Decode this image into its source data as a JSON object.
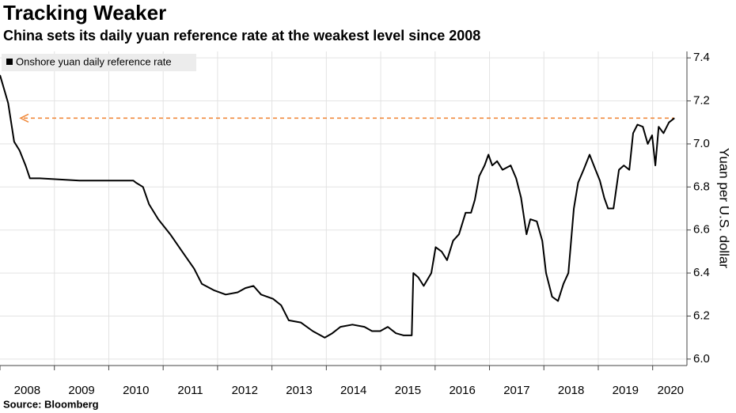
{
  "chart_data": {
    "type": "line",
    "title": "Tracking Weaker",
    "subtitle": "China sets its daily yuan reference rate at the weakest level since 2008",
    "y_label": "Yuan per U.S. dollar",
    "source": "Source: Bloomberg",
    "x": [
      2008.0,
      2008.15,
      2008.26,
      2008.36,
      2008.47,
      2008.55,
      2008.66,
      2008.73,
      2009.46,
      2010.45,
      2010.5,
      2010.63,
      2010.74,
      2010.91,
      2011.13,
      2011.35,
      2011.57,
      2011.71,
      2011.93,
      2012.15,
      2012.37,
      2012.51,
      2012.66,
      2012.8,
      2013.02,
      2013.17,
      2013.31,
      2013.53,
      2013.75,
      2013.97,
      2014.11,
      2014.26,
      2014.48,
      2014.7,
      2014.84,
      2014.99,
      2015.13,
      2015.28,
      2015.42,
      2015.57,
      2015.6,
      2015.69,
      2015.79,
      2015.93,
      2016.01,
      2016.12,
      2016.22,
      2016.33,
      2016.44,
      2016.56,
      2016.66,
      2016.73,
      2016.81,
      2016.91,
      2016.98,
      2017.05,
      2017.14,
      2017.24,
      2017.39,
      2017.49,
      2017.58,
      2017.68,
      2017.75,
      2017.87,
      2017.97,
      2018.04,
      2018.15,
      2018.26,
      2018.36,
      2018.45,
      2018.55,
      2018.63,
      2018.73,
      2018.84,
      2018.95,
      2019.03,
      2019.11,
      2019.18,
      2019.28,
      2019.38,
      2019.47,
      2019.57,
      2019.64,
      2019.72,
      2019.82,
      2019.91,
      2019.99,
      2020.05,
      2020.11,
      2020.2,
      2020.3,
      2020.4
    ],
    "series": [
      {
        "name": "Onshore yuan daily reference rate",
        "color": "#000000",
        "values": [
          7.32,
          7.19,
          7.01,
          6.97,
          6.9,
          6.84,
          6.84,
          6.84,
          6.83,
          6.83,
          6.82,
          6.8,
          6.72,
          6.65,
          6.58,
          6.5,
          6.42,
          6.35,
          6.32,
          6.3,
          6.31,
          6.33,
          6.34,
          6.3,
          6.28,
          6.25,
          6.18,
          6.17,
          6.13,
          6.1,
          6.12,
          6.15,
          6.16,
          6.15,
          6.13,
          6.13,
          6.15,
          6.12,
          6.11,
          6.11,
          6.4,
          6.38,
          6.34,
          6.4,
          6.52,
          6.5,
          6.46,
          6.55,
          6.58,
          6.68,
          6.68,
          6.74,
          6.85,
          6.9,
          6.95,
          6.9,
          6.92,
          6.88,
          6.9,
          6.84,
          6.75,
          6.58,
          6.65,
          6.64,
          6.55,
          6.4,
          6.29,
          6.27,
          6.35,
          6.4,
          6.7,
          6.82,
          6.88,
          6.95,
          6.88,
          6.83,
          6.75,
          6.7,
          6.7,
          6.88,
          6.9,
          6.88,
          7.05,
          7.09,
          7.08,
          7.0,
          7.04,
          6.9,
          7.08,
          7.05,
          7.1,
          7.12
        ]
      }
    ],
    "reference_line": {
      "value": 7.12,
      "color": "#f08a3c"
    },
    "xlim": [
      2008,
      2020.63
    ],
    "xticks": [
      2008,
      2009,
      2010,
      2011,
      2012,
      2013,
      2014,
      2015,
      2016,
      2017,
      2018,
      2019,
      2020
    ],
    "ylim": [
      5.97,
      7.43
    ],
    "yticks": [
      7.4,
      7.2,
      {
        "value": 7,
        "label": "7.0"
      },
      6.8,
      6.6,
      6.4,
      6.2,
      {
        "value": 6,
        "label": "6.0"
      }
    ],
    "grid": true,
    "legend": "top-left"
  }
}
